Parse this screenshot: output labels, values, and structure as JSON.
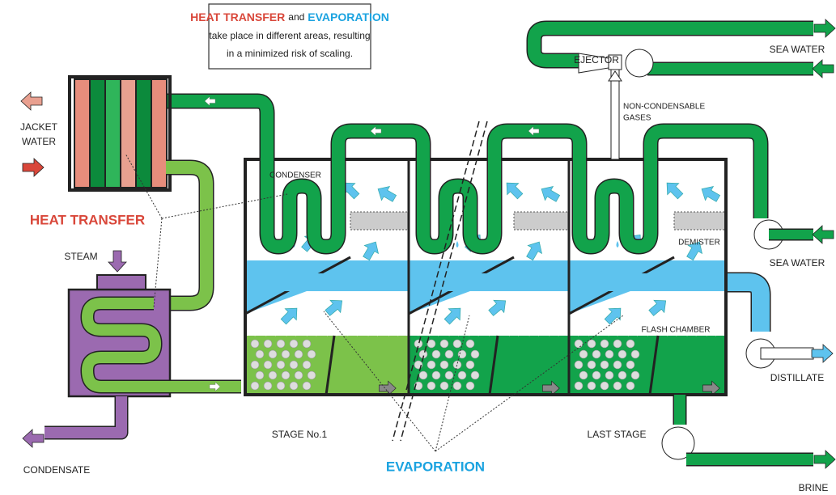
{
  "callout": {
    "highlight_1": "HEAT TRANSFER",
    "connector": "and",
    "highlight_2": "EVAPORATION",
    "line_1": "take place in different areas, resulting",
    "line_2": "in a minimized risk of scaling."
  },
  "labels": {
    "ejector": "EJECTOR",
    "sea_water_top": "SEA WATER",
    "non_condensable_1": "NON-CONDENSABLE",
    "non_condensable_2": "GASES",
    "jacket_water_1": "JACKET",
    "jacket_water_2": "WATER",
    "heat_transfer": "HEAT TRANSFER",
    "condenser": "CONDENSER",
    "demister": "DEMISTER",
    "sea_water_mid": "SEA WATER",
    "steam": "STEAM",
    "flash_chamber": "FLASH CHAMBER",
    "distillate": "DISTILLATE",
    "stage_1": "STAGE No.1",
    "last_stage": "LAST STAGE",
    "condensate": "CONDENSATE",
    "evaporation": "EVAPORATION",
    "brine": "BRINE"
  }
}
